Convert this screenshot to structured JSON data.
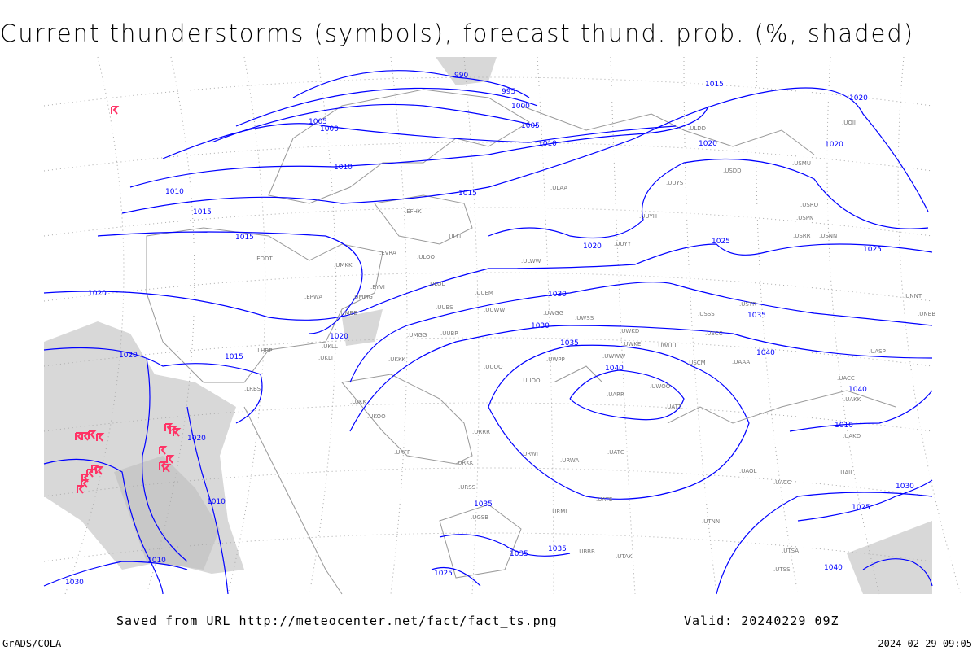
{
  "title": "Current thunderstorms (symbols), forecast thund. prob. (%, shaded)",
  "footer": {
    "saved_from": "Saved from URL http://meteocenter.net/fact/fact_ts.png",
    "valid": "Valid: 20240229 09Z",
    "software": "GrADS/COLA",
    "timestamp": "2024-02-29-09:05"
  },
  "colors": {
    "isobar": "#0000ff",
    "coast": "#999999",
    "thunderstorm_symbol": "#ff3366",
    "probability_shade": "#d8d8d8"
  },
  "isobar_labels": [
    "990",
    "995",
    "1000",
    "1005",
    "1000",
    "1005",
    "1010",
    "1010",
    "1010",
    "1015",
    "1015",
    "1015",
    "1020",
    "1020",
    "1015",
    "1020",
    "1020",
    "1025",
    "1025",
    "1020",
    "1020",
    "1030",
    "1030",
    "1035",
    "1040",
    "1035",
    "1040",
    "1040",
    "1010",
    "1020",
    "1015",
    "1020",
    "1010",
    "1010",
    "1030",
    "1035",
    "1035",
    "1025",
    "1035",
    "1030",
    "1025",
    "1040"
  ],
  "stations": [
    "EFHK",
    "ULAA",
    "ULLI",
    "EVRA",
    "ULOO",
    "UMKK",
    "EDDT",
    "EPWA",
    "UMMG",
    "EYVI",
    "UMBB",
    "ULOL",
    "UUEM",
    "UUWW",
    "UUOO",
    "UUBS",
    "UMGG",
    "UUBP",
    "UKLL",
    "UKLI",
    "UKKK",
    "LHBP",
    "LRBS",
    "LUKK",
    "UKOO",
    "UKFF",
    "URSS",
    "URKK",
    "URRR",
    "UUOO",
    "UWWW",
    "UWPP",
    "UUYY",
    "UUYH",
    "UUYS",
    "ULWW",
    "UWKD",
    "UWKE",
    "UWUU",
    "USCC",
    "USSS",
    "USTR",
    "USCM",
    "UAAA",
    "UACC",
    "UARR",
    "UATT",
    "UWOO",
    "URWI",
    "URWA",
    "UATG",
    "UATE",
    "URML",
    "UGSB",
    "UBBB",
    "UTAK",
    "UTNN",
    "UTSA",
    "UTSS",
    "USRR",
    "USNN",
    "USPN",
    "USRO",
    "USMU",
    "USDD",
    "ULDD",
    "UOII",
    "UNNT",
    "UNBB",
    "UASP",
    "UAKK",
    "UAKD",
    "UAII",
    "UAOL",
    "UACC",
    "UWGG",
    "UWSS"
  ],
  "thunderstorm_symbol": "K-symbol"
}
